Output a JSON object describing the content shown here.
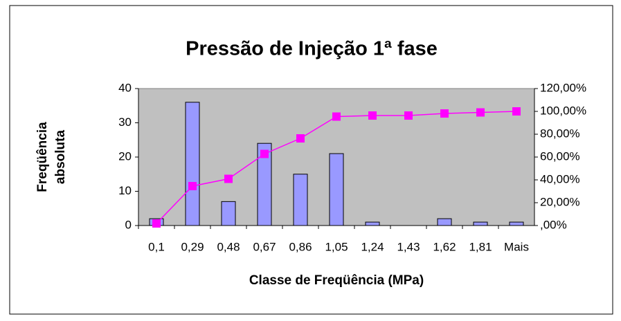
{
  "chart_data": {
    "type": "bar",
    "title": "Pressão de Injeção 1ª fase",
    "x_label": "Classe de Freqüência (MPa)",
    "y_label": [
      "Freqüência",
      "absoluta"
    ],
    "categories": [
      "0,1",
      "0,29",
      "0,48",
      "0,67",
      "0,86",
      "1,05",
      "1,24",
      "1,43",
      "1,62",
      "1,81",
      "Mais"
    ],
    "series": [
      {
        "type": "bar",
        "color": "#9999ff",
        "values": [
          2,
          36,
          7,
          24,
          15,
          21,
          1,
          0,
          2,
          1,
          1
        ]
      },
      {
        "type": "line",
        "axis": "y2",
        "color": "#ff00ff",
        "values": [
          1.82,
          34.55,
          40.91,
          62.73,
          76.36,
          95.45,
          96.36,
          96.36,
          98.18,
          99.09,
          100
        ]
      }
    ],
    "ylim": [
      0,
      40
    ],
    "yticks": [
      0,
      10,
      20,
      30,
      40
    ],
    "y2lim": [
      0,
      120
    ],
    "y2ticks": [
      {
        "value": 0,
        "label": ",00%"
      },
      {
        "value": 20,
        "label": "20,00%"
      },
      {
        "value": 40,
        "label": "40,00%"
      },
      {
        "value": 60,
        "label": "60,00%"
      },
      {
        "value": 80,
        "label": "80,00%"
      },
      {
        "value": 100,
        "label": "100,00%"
      },
      {
        "value": 120,
        "label": "120,00%"
      }
    ],
    "grid": false,
    "plot_background": "#c0c0c0"
  }
}
